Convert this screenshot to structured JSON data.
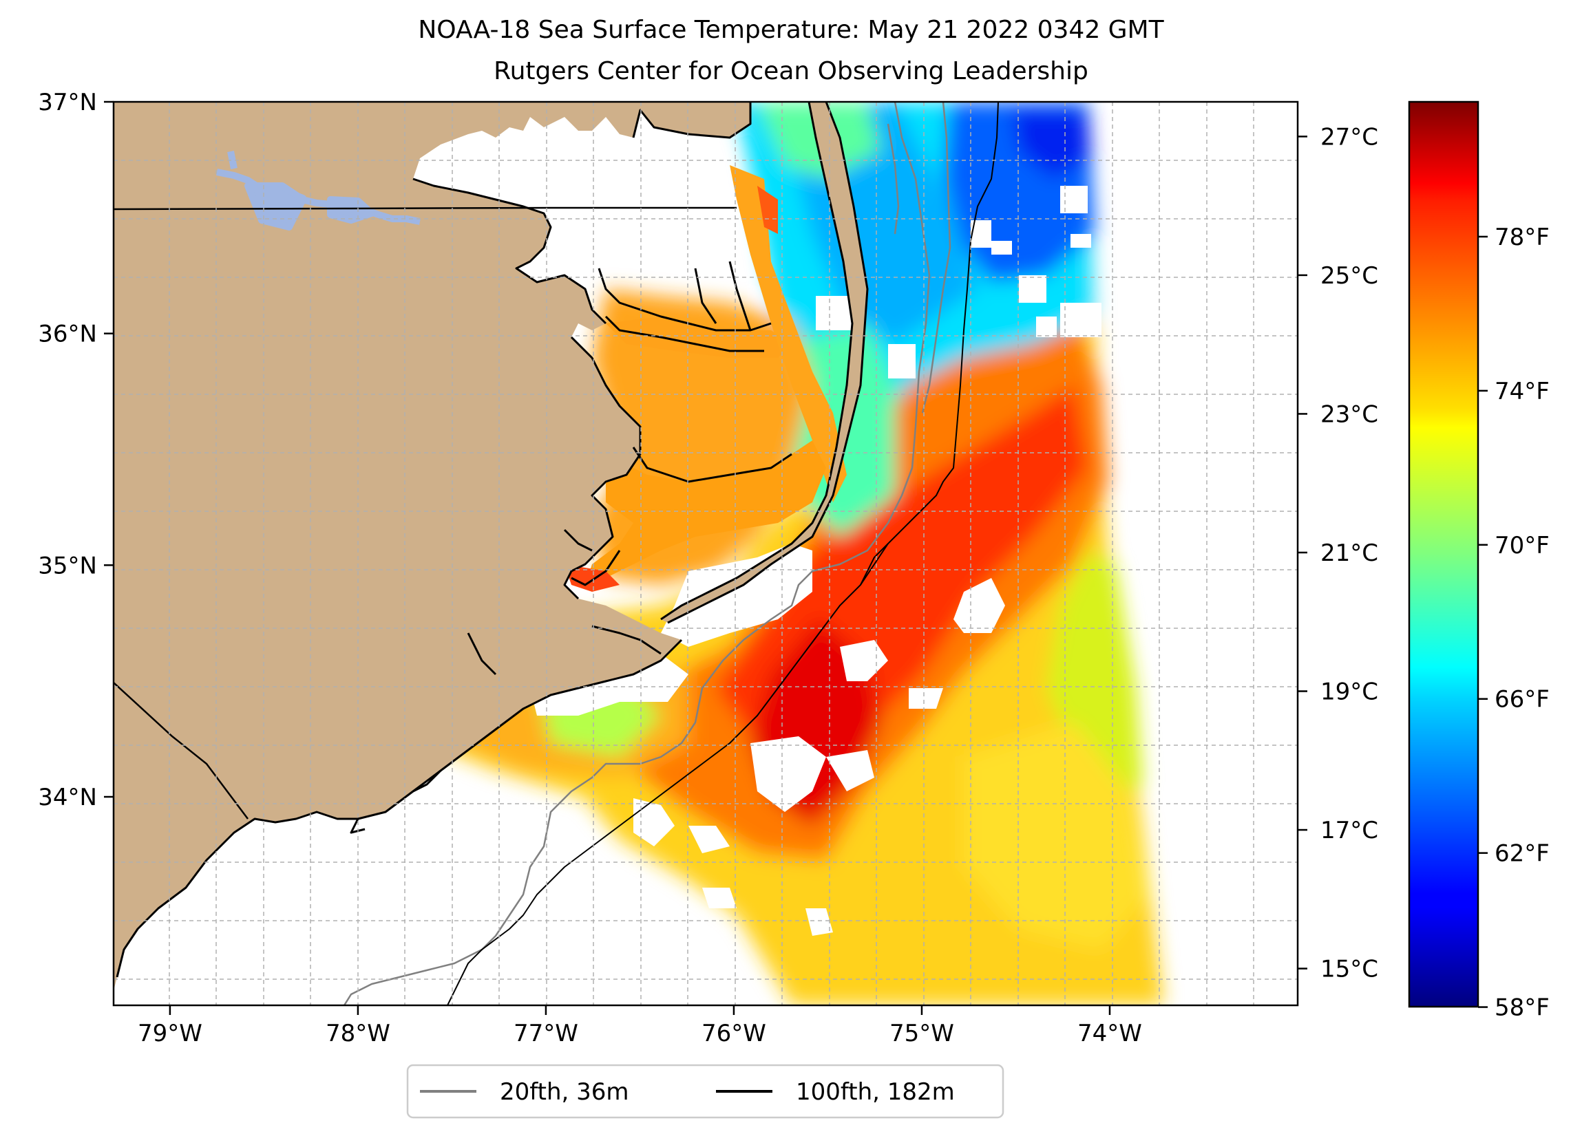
{
  "title": {
    "line1": "NOAA-18 Sea Surface Temperature: May 21 2022 0342 GMT",
    "line2": "Rutgers Center for Ocean Observing Leadership"
  },
  "colors": {
    "land": "#cfb08a",
    "lake": "#9fb6e3",
    "coastline": "#000000",
    "isobath_20fth": "#808080",
    "isobath_100fth": "#000000",
    "grid": "#b0b0b0"
  },
  "map": {
    "lon_ticks": [
      {
        "value": -79,
        "label": "79°W"
      },
      {
        "value": -78,
        "label": "78°W"
      },
      {
        "value": -77,
        "label": "77°W"
      },
      {
        "value": -76,
        "label": "76°W"
      },
      {
        "value": -75,
        "label": "75°W"
      },
      {
        "value": -74,
        "label": "74°W"
      }
    ],
    "lat_ticks": [
      {
        "value": 37,
        "label": "37°N"
      },
      {
        "value": 36,
        "label": "36°N"
      },
      {
        "value": 35,
        "label": "35°N"
      },
      {
        "value": 34,
        "label": "34°N"
      }
    ],
    "lon_range": [
      -79.3,
      -73.0
    ],
    "lat_range": [
      33.1,
      37.0
    ]
  },
  "colorbar": {
    "colormap": "jet",
    "celsius_ticks": [
      {
        "value": 27,
        "label": "27°C"
      },
      {
        "value": 25,
        "label": "25°C"
      },
      {
        "value": 23,
        "label": "23°C"
      },
      {
        "value": 21,
        "label": "21°C"
      },
      {
        "value": 19,
        "label": "19°C"
      },
      {
        "value": 17,
        "label": "17°C"
      },
      {
        "value": 15,
        "label": "15°C"
      }
    ],
    "fahrenheit_ticks": [
      {
        "value": 78,
        "label": "78°F"
      },
      {
        "value": 74,
        "label": "74°F"
      },
      {
        "value": 70,
        "label": "70°F"
      },
      {
        "value": 66,
        "label": "66°F"
      },
      {
        "value": 62,
        "label": "62°F"
      },
      {
        "value": 58,
        "label": "58°F"
      }
    ]
  },
  "legend": {
    "items": [
      {
        "label": "20fth, 36m",
        "color": "#808080"
      },
      {
        "label": "100fth, 182m",
        "color": "#000000"
      }
    ]
  }
}
